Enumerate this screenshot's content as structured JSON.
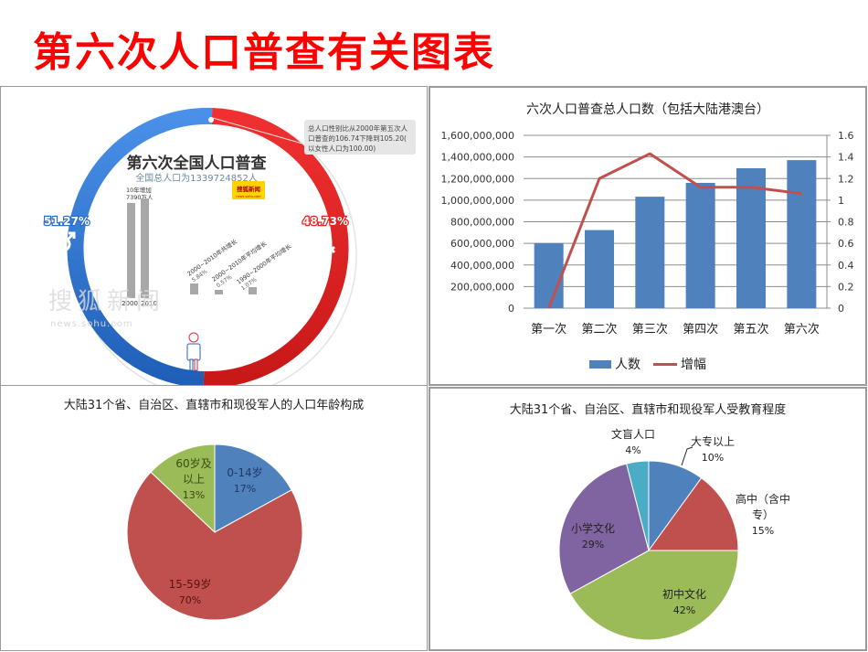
{
  "slide": {
    "title": "第六次人口普查有关图表",
    "title_color": "#ff0000"
  },
  "infographic": {
    "title": "第六次全国人口普查",
    "subtitle": "全国总人口为1339724852人",
    "male_pct": "51.27%",
    "female_pct": "48.73%",
    "male_color": "#2a6fd0",
    "female_color": "#e32222",
    "note": [
      "总人口性别比从2000年第五次人",
      "口普查的106.74下降到105.20(",
      "以女性人口为100.00)"
    ],
    "logo": "搜狐新闻",
    "logo_sub": "news.sohu.com",
    "bar_note": [
      "10年增加",
      "7390万人"
    ],
    "bar_labels": [
      "2000",
      "2010"
    ],
    "growth_items": [
      {
        "label": "2000~2010年共增长",
        "value": "5.84%"
      },
      {
        "label": "2000~2010年平均增长",
        "value": "0.57%"
      },
      {
        "label": "1990~2000年平均增长",
        "value": "1.07%"
      }
    ],
    "watermark": "搜狐新闻",
    "watermark_sub": "news.sohu.com"
  },
  "chart_data": [
    {
      "type": "bar",
      "title": "六次人口普查总人口数（包括大陆港澳台）",
      "categories": [
        "第一次",
        "第二次",
        "第三次",
        "第四次",
        "第五次",
        "第六次"
      ],
      "series": [
        {
          "name": "人数",
          "type": "bar",
          "axis": "left",
          "color": "#4f81bd",
          "values": [
            601938035,
            723070269,
            1031882511,
            1160017381,
            1295330000,
            1370536875
          ]
        },
        {
          "name": "增幅",
          "type": "line",
          "axis": "right",
          "color": "#c0504d",
          "values": [
            0,
            1.2,
            1.43,
            1.12,
            1.12,
            1.06
          ]
        }
      ],
      "yleft_ticks": [
        "0",
        "200,000,000",
        "400,000,000",
        "600,000,000",
        "800,000,000",
        "1,000,000,000",
        "1,200,000,000",
        "1,400,000,000",
        "1,600,000,000"
      ],
      "yright_ticks": [
        "0",
        "0.2",
        "0.4",
        "0.6",
        "0.8",
        "1",
        "1.2",
        "1.4",
        "1.6"
      ],
      "ylim_left": [
        0,
        1600000000
      ],
      "ylim_right": [
        0,
        1.6
      ],
      "grid": true,
      "legend_position": "bottom"
    },
    {
      "type": "pie",
      "title": "大陆31个省、自治区、直辖市和现役军人的人口年龄构成",
      "labels": [
        "0-14岁",
        "15-59岁",
        "60岁及以上"
      ],
      "values": [
        17,
        70,
        13
      ],
      "display": [
        "17%",
        "70%",
        "13%"
      ],
      "colors": [
        "#4f81bd",
        "#c0504d",
        "#9bbb59"
      ]
    },
    {
      "type": "pie",
      "title": "大陆31个省、自治区、直辖市和现役军人受教育程度",
      "labels": [
        "大专以上",
        "高中（含中专）",
        "初中文化",
        "小学文化",
        "文盲人口"
      ],
      "values": [
        10,
        15,
        42,
        29,
        4
      ],
      "display": [
        "10%",
        "15%",
        "42%",
        "29%",
        "4%"
      ],
      "colors": [
        "#4f81bd",
        "#c0504d",
        "#9bbb59",
        "#8064a2",
        "#4bacc6"
      ]
    }
  ]
}
